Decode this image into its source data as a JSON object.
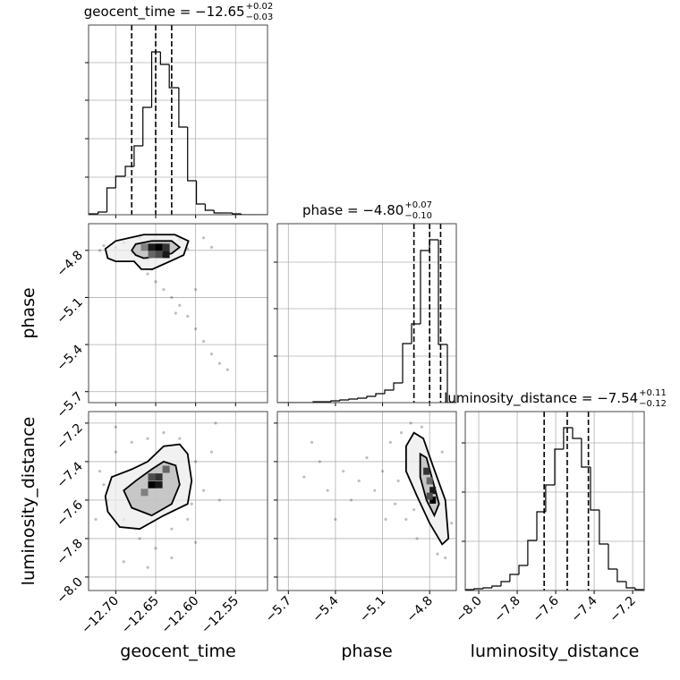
{
  "chart_data": [
    {
      "type": "histogram",
      "title": {
        "text": "geocent_time = −12.65",
        "plus": "+0.02",
        "minus": "−0.03"
      },
      "bins": [
        -12.733,
        -12.722,
        -12.711,
        -12.7,
        -12.688,
        -12.677,
        -12.666,
        -12.655,
        -12.644,
        -12.633,
        -12.621,
        -12.61,
        -12.599,
        -12.588,
        -12.577,
        -12.565,
        -12.554,
        -12.543,
        -12.532,
        -12.521,
        -12.51
      ],
      "counts": [
        1,
        3,
        30,
        43,
        54,
        77,
        120,
        182,
        168,
        142,
        98,
        38,
        12,
        5,
        2,
        2,
        1,
        0,
        0,
        0
      ],
      "quantiles": [
        -12.68,
        -12.65,
        -12.63
      ],
      "xlim": [
        -12.734,
        -12.51
      ],
      "ylim": [
        0,
        212
      ],
      "xticks": [
        -12.7,
        -12.65,
        -12.6,
        -12.55
      ],
      "yticks": [
        42,
        85,
        128,
        170
      ],
      "grid": true,
      "color": "#000000"
    },
    {
      "type": "density",
      "xlim": [
        -12.734,
        -12.51
      ],
      "ylim": [
        -5.77,
        -4.63
      ],
      "xticks": [
        -12.7,
        -12.65,
        -12.6,
        -12.55
      ],
      "yticks": [
        {
          "value": -5.7,
          "label": "−5.7"
        },
        {
          "value": -5.4,
          "label": "−5.4"
        },
        {
          "value": -5.1,
          "label": "−5.1"
        },
        {
          "value": -4.8,
          "label": "−4.8"
        }
      ],
      "ylabel": "phase",
      "grid": true,
      "point_color": "#000000",
      "points": {
        "x": [
          -12.7,
          -12.69,
          -12.68,
          -12.67,
          -12.66,
          -12.64,
          -12.63,
          -12.62,
          -12.61,
          -12.72,
          -12.715,
          -12.66,
          -12.65,
          -12.64,
          -12.63,
          -12.62,
          -12.61,
          -12.6,
          -12.59,
          -12.58,
          -12.57,
          -12.56,
          -12.655,
          -12.67,
          -12.6,
          -12.625,
          -12.59,
          -12.58
        ],
        "y": [
          -4.78,
          -4.75,
          -4.82,
          -4.72,
          -4.86,
          -4.76,
          -4.81,
          -4.73,
          -4.79,
          -4.8,
          -4.77,
          -4.95,
          -5.0,
          -5.05,
          -5.1,
          -5.15,
          -5.22,
          -5.3,
          -5.38,
          -5.46,
          -5.52,
          -5.56,
          -4.92,
          -4.9,
          -5.05,
          -5.2,
          -4.72,
          -4.78
        ]
      },
      "contours": [
        {
          "fill": "#ececec",
          "x": [
            -12.71,
            -12.713,
            -12.7,
            -12.665,
            -12.626,
            -12.609,
            -12.615,
            -12.632,
            -12.654,
            -12.668,
            -12.677,
            -12.7
          ],
          "y": [
            -4.85,
            -4.79,
            -4.74,
            -4.7,
            -4.7,
            -4.74,
            -4.83,
            -4.87,
            -4.92,
            -4.92,
            -4.87,
            -4.87
          ]
        },
        {
          "fill": "#b8b8b8",
          "x": [
            -12.68,
            -12.675,
            -12.655,
            -12.63,
            -12.62,
            -12.63,
            -12.65,
            -12.665,
            -12.675
          ],
          "y": [
            -4.8,
            -4.76,
            -4.74,
            -4.74,
            -4.78,
            -4.82,
            -4.84,
            -4.85,
            -4.83
          ]
        }
      ],
      "cell_size": [
        0.009,
        0.046
      ],
      "cells": {
        "x": [
          -12.655,
          -12.646,
          -12.637,
          -12.655,
          -12.646,
          -12.637,
          -12.664
        ],
        "y": [
          -4.78,
          -4.78,
          -4.78,
          -4.826,
          -4.826,
          -4.826,
          -4.78
        ],
        "density": [
          0.9,
          1,
          0.8,
          0.6,
          0.7,
          0.9,
          0.5
        ]
      }
    },
    {
      "type": "histogram",
      "title": {
        "text": "phase = −4.80",
        "plus": "+0.07",
        "minus": "−0.10"
      },
      "bins": [
        -5.77,
        -5.713,
        -5.656,
        -5.599,
        -5.542,
        -5.485,
        -5.428,
        -5.371,
        -5.314,
        -5.257,
        -5.2,
        -5.143,
        -5.086,
        -5.029,
        -4.972,
        -4.915,
        -4.858,
        -4.801,
        -4.744,
        -4.687,
        -4.63
      ],
      "counts": [
        0,
        0,
        0,
        0,
        1,
        1,
        2,
        3,
        4,
        5,
        7,
        10,
        14,
        22,
        66,
        88,
        170,
        182,
        65,
        0
      ],
      "quantiles": [
        -4.9,
        -4.8,
        -4.73
      ],
      "xlim": [
        -5.77,
        -4.63
      ],
      "ylim": [
        0,
        200
      ],
      "xticks": [
        -5.7,
        -5.4,
        -5.1,
        -4.8
      ],
      "yticks": [
        52,
        105,
        157
      ],
      "grid": true,
      "color": "#000000"
    },
    {
      "type": "density",
      "xlim": [
        -12.734,
        -12.51
      ],
      "ylim": [
        -8.07,
        -7.14
      ],
      "xticks": [
        {
          "value": -12.7,
          "label": "−12.70"
        },
        {
          "value": -12.65,
          "label": "−12.65"
        },
        {
          "value": -12.6,
          "label": "−12.60"
        },
        {
          "value": -12.55,
          "label": "−12.55"
        }
      ],
      "yticks": [
        {
          "value": -8.0,
          "label": "−8.0"
        },
        {
          "value": -7.8,
          "label": "−7.8"
        },
        {
          "value": -7.6,
          "label": "−7.6"
        },
        {
          "value": -7.4,
          "label": "−7.4"
        },
        {
          "value": -7.2,
          "label": "−7.2"
        }
      ],
      "xlabel": "geocent_time",
      "ylabel": "luminosity_distance",
      "grid": true,
      "point_color": "#000000",
      "points": {
        "x": [
          -12.72,
          -12.71,
          -12.7,
          -12.69,
          -12.68,
          -12.67,
          -12.66,
          -12.65,
          -12.64,
          -12.63,
          -12.62,
          -12.61,
          -12.6,
          -12.59,
          -12.58,
          -12.725,
          -12.69,
          -12.66,
          -12.6,
          -12.57,
          -12.575,
          -12.7,
          -12.63,
          -12.715,
          -12.605
        ],
        "y": [
          -7.45,
          -7.6,
          -7.35,
          -7.7,
          -7.3,
          -7.8,
          -7.28,
          -7.85,
          -7.25,
          -7.75,
          -7.28,
          -7.7,
          -7.4,
          -7.55,
          -7.35,
          -7.7,
          -7.92,
          -7.95,
          -7.82,
          -7.6,
          -7.2,
          -7.22,
          -7.9,
          -7.52,
          -7.62
        ]
      },
      "contours": [
        {
          "fill": "#ececec",
          "x": [
            -12.713,
            -12.705,
            -12.68,
            -12.66,
            -12.64,
            -12.62,
            -12.61,
            -12.605,
            -12.61,
            -12.64,
            -12.67,
            -12.695,
            -12.71
          ],
          "y": [
            -7.58,
            -7.48,
            -7.44,
            -7.4,
            -7.32,
            -7.31,
            -7.36,
            -7.5,
            -7.62,
            -7.68,
            -7.75,
            -7.74,
            -7.66
          ]
        },
        {
          "fill": "#b8b8b8",
          "x": [
            -12.69,
            -12.675,
            -12.655,
            -12.64,
            -12.625,
            -12.62,
            -12.63,
            -12.655,
            -12.68
          ],
          "y": [
            -7.55,
            -7.5,
            -7.44,
            -7.4,
            -7.42,
            -7.52,
            -7.62,
            -7.68,
            -7.64
          ]
        }
      ],
      "cell_size": [
        0.009,
        0.037
      ],
      "cells": {
        "x": [
          -12.655,
          -12.646,
          -12.646,
          -12.637,
          -12.655,
          -12.664
        ],
        "y": [
          -7.52,
          -7.48,
          -7.52,
          -7.44,
          -7.48,
          -7.56
        ],
        "density": [
          1,
          0.8,
          0.9,
          0.6,
          0.7,
          0.5
        ]
      }
    },
    {
      "type": "density",
      "xlim": [
        -5.77,
        -4.63
      ],
      "ylim": [
        -8.07,
        -7.14
      ],
      "xticks": [
        {
          "value": -5.7,
          "label": "−5.7"
        },
        {
          "value": -5.4,
          "label": "−5.4"
        },
        {
          "value": -5.1,
          "label": "−5.1"
        },
        {
          "value": -4.8,
          "label": "−4.8"
        }
      ],
      "yticks": [
        -8.0,
        -7.8,
        -7.6,
        -7.4,
        -7.2
      ],
      "xlabel": "phase",
      "grid": true,
      "point_color": "#000000",
      "points": {
        "x": [
          -5.6,
          -5.5,
          -5.45,
          -5.35,
          -5.3,
          -5.25,
          -5.2,
          -5.15,
          -5.1,
          -5.05,
          -5.02,
          -5.0,
          -4.98,
          -4.95,
          -4.92,
          -4.9,
          -4.88,
          -4.85,
          -4.75,
          -4.7,
          -4.66,
          -4.72,
          -5.4,
          -5.55,
          -5.08
        ],
        "y": [
          -7.48,
          -7.4,
          -7.55,
          -7.45,
          -7.6,
          -7.5,
          -7.38,
          -7.55,
          -7.45,
          -7.3,
          -7.62,
          -7.5,
          -7.25,
          -7.7,
          -7.2,
          -7.65,
          -7.8,
          -7.22,
          -7.88,
          -7.9,
          -7.72,
          -7.35,
          -7.7,
          -7.3,
          -7.7
        ]
      },
      "contours": [
        {
          "fill": "#ececec",
          "x": [
            -4.95,
            -4.9,
            -4.84,
            -4.78,
            -4.7,
            -4.68,
            -4.72,
            -4.8,
            -4.88,
            -4.95
          ],
          "y": [
            -7.32,
            -7.25,
            -7.28,
            -7.42,
            -7.6,
            -7.8,
            -7.83,
            -7.72,
            -7.58,
            -7.45
          ]
        },
        {
          "fill": "#b8b8b8",
          "x": [
            -4.86,
            -4.82,
            -4.78,
            -4.74,
            -4.77,
            -4.82,
            -4.86
          ],
          "y": [
            -7.36,
            -7.38,
            -7.5,
            -7.62,
            -7.68,
            -7.6,
            -7.48
          ]
        }
      ],
      "cell_size": [
        0.04,
        0.037
      ],
      "cells": {
        "x": [
          -4.82,
          -4.8,
          -4.78,
          -4.78,
          -4.8
        ],
        "y": [
          -7.45,
          -7.5,
          -7.55,
          -7.6,
          -7.58
        ],
        "density": [
          0.8,
          0.6,
          0.9,
          1,
          0.7
        ]
      }
    },
    {
      "type": "histogram",
      "title": {
        "text": "luminosity_distance = −7.54",
        "plus": "+0.11",
        "minus": "−0.12"
      },
      "bins": [
        -8.07,
        -8.024,
        -7.977,
        -7.931,
        -7.884,
        -7.838,
        -7.791,
        -7.745,
        -7.698,
        -7.652,
        -7.605,
        -7.559,
        -7.512,
        -7.466,
        -7.419,
        -7.373,
        -7.326,
        -7.28,
        -7.233,
        -7.187,
        -7.14
      ],
      "counts": [
        1,
        2,
        3,
        5,
        10,
        18,
        28,
        56,
        88,
        118,
        158,
        182,
        170,
        138,
        90,
        52,
        24,
        10,
        3,
        1
      ],
      "quantiles": [
        -7.66,
        -7.54,
        -7.43
      ],
      "xlim": [
        -8.07,
        -7.14
      ],
      "ylim": [
        0,
        200
      ],
      "xticks": [
        {
          "value": -8.0,
          "label": "−8.0"
        },
        {
          "value": -7.8,
          "label": "−7.8"
        },
        {
          "value": -7.6,
          "label": "−7.6"
        },
        {
          "value": -7.4,
          "label": "−7.4"
        },
        {
          "value": -7.2,
          "label": "−7.2"
        }
      ],
      "yticks": [
        55,
        110,
        165
      ],
      "xlabel": "luminosity_distance",
      "grid": true,
      "color": "#000000"
    }
  ]
}
